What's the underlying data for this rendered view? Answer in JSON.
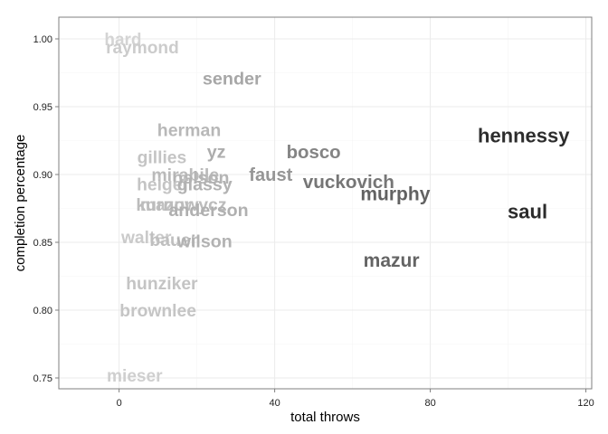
{
  "chart_data": {
    "type": "scatter",
    "mark": "text",
    "title": "",
    "xlabel": "total throws",
    "ylabel": "completion percentage",
    "xlim": [
      -15.5,
      121.5
    ],
    "ylim": [
      0.742,
      1.016
    ],
    "x_ticks": [
      0,
      40,
      80,
      120
    ],
    "x_tick_labels": [
      "0",
      "40",
      "80",
      "120"
    ],
    "y_ticks": [
      0.75,
      0.8,
      0.85,
      0.9,
      0.95,
      1.0
    ],
    "y_tick_labels": [
      "0.75",
      "0.80",
      "0.85",
      "0.90",
      "0.95",
      "1.00"
    ],
    "grid": true,
    "legend": "none",
    "colors": {
      "panel_background": "#ffffff",
      "panel_border": "#7f7f7f",
      "grid_major": "#ebebeb",
      "grid_minor": "#f5f5f5",
      "label_low": "#d4d4d4",
      "label_high": "#2b2b2b"
    },
    "points": [
      {
        "label": "hard",
        "x": 1,
        "y": 1.0
      },
      {
        "label": "raymond",
        "x": 6,
        "y": 0.994
      },
      {
        "label": "sender",
        "x": 29,
        "y": 0.971
      },
      {
        "label": "herman",
        "x": 18,
        "y": 0.933
      },
      {
        "label": "yz",
        "x": 25,
        "y": 0.917
      },
      {
        "label": "bosco",
        "x": 50,
        "y": 0.917
      },
      {
        "label": "hennessy",
        "x": 104,
        "y": 0.929
      },
      {
        "label": "gillies",
        "x": 11,
        "y": 0.913
      },
      {
        "label": "faust",
        "x": 39,
        "y": 0.9
      },
      {
        "label": "mirabile",
        "x": 17,
        "y": 0.9
      },
      {
        "label": "nelson",
        "x": 21,
        "y": 0.898
      },
      {
        "label": "vuckovich",
        "x": 59,
        "y": 0.895
      },
      {
        "label": "heigel",
        "x": 11,
        "y": 0.893
      },
      {
        "label": "glassy",
        "x": 22,
        "y": 0.893
      },
      {
        "label": "murphy",
        "x": 71,
        "y": 0.886
      },
      {
        "label": "mazur",
        "x": 12,
        "y": 0.878
      },
      {
        "label": "kurnowycz",
        "x": 16,
        "y": 0.878
      },
      {
        "label": "anderson",
        "x": 23,
        "y": 0.874
      },
      {
        "label": "saul",
        "x": 105,
        "y": 0.873
      },
      {
        "label": "walter",
        "x": 7,
        "y": 0.854
      },
      {
        "label": "bauer",
        "x": 14,
        "y": 0.852
      },
      {
        "label": "wilson",
        "x": 22,
        "y": 0.851
      },
      {
        "label": "mazur",
        "x": 70,
        "y": 0.837
      },
      {
        "label": "hunziker",
        "x": 11,
        "y": 0.82
      },
      {
        "label": "brownlee",
        "x": 10,
        "y": 0.8
      },
      {
        "label": "mieser",
        "x": 4,
        "y": 0.752
      }
    ]
  }
}
